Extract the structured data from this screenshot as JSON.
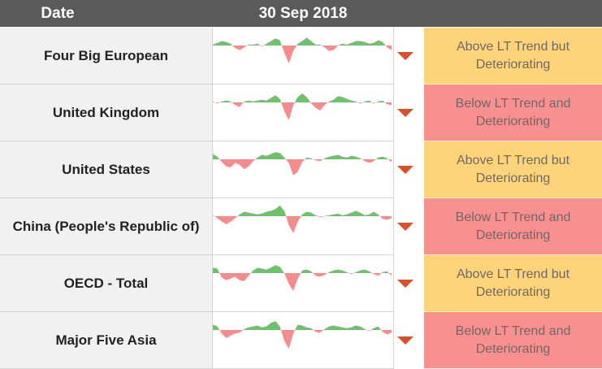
{
  "header": {
    "date_label": "Date",
    "period_label": "30 Sep 2018"
  },
  "colors": {
    "positive": "#6cc36a",
    "negative": "#f38d8d",
    "arrow": "#d5532c",
    "amber": "#fed47a",
    "red": "#f99090"
  },
  "icons": {
    "trend": "down-triangle-icon"
  },
  "rows": [
    {
      "name": "Four Big European",
      "status": "Above LT Trend but Deteriorating",
      "tone": "amber",
      "spark": [
        0.1,
        0.3,
        0.5,
        0.4,
        0.2,
        -0.3,
        -0.5,
        -0.2,
        0.1,
        0.1,
        0.2,
        -0.1,
        0.2,
        0.5,
        0.8,
        0.6,
        -0.8,
        -2.0,
        -0.6,
        0.2,
        0.5,
        0.9,
        0.5,
        0.1,
        0.1,
        -0.2,
        -0.6,
        -0.5,
        0.0,
        0.2,
        0.1,
        0.3,
        0.5,
        0.5,
        0.4,
        0.2,
        0.3,
        0.6,
        0.4,
        -0.2,
        -0.5
      ]
    },
    {
      "name": "United Kingdom",
      "status": "Below LT Trend and Deteriorating",
      "tone": "red",
      "spark": [
        0.1,
        -0.1,
        0.1,
        0.2,
        0.1,
        -0.3,
        -0.5,
        0.1,
        0.2,
        0.1,
        0.2,
        0.3,
        0.2,
        0.5,
        0.8,
        0.4,
        -1.0,
        -2.0,
        -0.3,
        0.6,
        1.0,
        0.6,
        -0.1,
        -0.6,
        -0.9,
        -0.3,
        0.1,
        0.3,
        0.7,
        0.6,
        0.4,
        0.2,
        0.1,
        -0.1,
        0.1,
        0.2,
        -0.1,
        0.1,
        0.2,
        -0.2,
        -0.3
      ]
    },
    {
      "name": "United States",
      "status": "Above LT Trend but Deteriorating",
      "tone": "amber",
      "spark": [
        0.6,
        0.3,
        -0.3,
        -0.8,
        -0.9,
        -0.4,
        -0.6,
        -1.1,
        -0.8,
        -0.2,
        0.2,
        0.5,
        0.4,
        0.6,
        0.8,
        0.7,
        0.2,
        -0.4,
        -1.8,
        -1.4,
        -0.3,
        0.2,
        0.1,
        -0.1,
        -0.2,
        0.1,
        0.3,
        0.4,
        0.5,
        0.3,
        0.2,
        0.4,
        0.3,
        0.1,
        -0.2,
        -0.4,
        -0.2,
        0.2,
        0.3,
        0.1,
        -0.3
      ]
    },
    {
      "name": "China (People's Republic of)",
      "status": "Below LT Trend and Deteriorating",
      "tone": "red",
      "spark": [
        0.1,
        -0.2,
        -0.6,
        -0.9,
        -0.6,
        -0.2,
        0.2,
        0.5,
        0.4,
        0.3,
        0.2,
        0.3,
        0.5,
        0.6,
        0.8,
        1.2,
        0.6,
        -1.0,
        -1.9,
        -0.6,
        0.2,
        0.5,
        0.4,
        0.1,
        -0.1,
        0.0,
        0.1,
        0.2,
        0.3,
        0.1,
        0.2,
        0.4,
        0.6,
        0.4,
        0.1,
        0.2,
        0.5,
        0.2,
        -0.3,
        -0.4,
        -0.2
      ]
    },
    {
      "name": "OECD - Total",
      "status": "Above LT Trend but Deteriorating",
      "tone": "amber",
      "spark": [
        0.6,
        0.5,
        -0.5,
        -0.8,
        -0.6,
        -0.4,
        -0.8,
        -0.9,
        -0.3,
        0.3,
        0.6,
        0.5,
        0.4,
        0.6,
        0.9,
        0.7,
        0.0,
        -1.2,
        -2.0,
        -0.6,
        0.3,
        0.4,
        0.2,
        -0.3,
        -0.4,
        -0.2,
        0.1,
        0.3,
        0.4,
        0.3,
        0.1,
        -0.1,
        0.1,
        0.3,
        0.4,
        0.2,
        -0.1,
        -0.3,
        0.1,
        0.2,
        -0.3
      ]
    },
    {
      "name": "Major Five Asia",
      "status": "Below LT Trend and Deteriorating",
      "tone": "red",
      "spark": [
        0.6,
        0.4,
        -0.4,
        -0.9,
        -0.6,
        -0.4,
        -0.3,
        0.1,
        0.3,
        0.4,
        0.5,
        0.3,
        0.4,
        0.8,
        1.0,
        0.4,
        -1.2,
        -2.1,
        -0.4,
        0.6,
        0.5,
        0.3,
        0.2,
        -0.2,
        -0.3,
        0.1,
        0.4,
        0.5,
        0.4,
        0.3,
        0.2,
        0.3,
        0.5,
        0.4,
        0.1,
        -0.1,
        0.2,
        0.4,
        -0.2,
        -0.5,
        -0.3
      ]
    }
  ]
}
